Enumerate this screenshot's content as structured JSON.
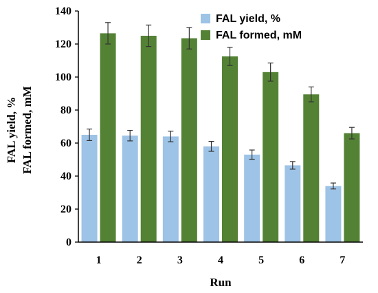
{
  "chart_data": {
    "type": "bar",
    "categories": [
      "1",
      "2",
      "3",
      "4",
      "5",
      "6",
      "7"
    ],
    "series": [
      {
        "name": "FAL yield, %",
        "values": [
          65,
          64.5,
          64,
          58,
          53,
          46.5,
          34
        ],
        "errors": [
          3.5,
          3.2,
          3.2,
          3.0,
          2.8,
          2.3,
          1.8
        ],
        "color": "#9dc3e6"
      },
      {
        "name": "FAL formed, mM",
        "values": [
          126.5,
          125,
          123.5,
          112.5,
          103,
          89.5,
          66
        ],
        "errors": [
          6.5,
          6.5,
          6.5,
          5.5,
          5.5,
          4.5,
          3.5
        ],
        "color": "#548235"
      }
    ],
    "xlabel": "Run",
    "ylabel_line1": "FAL yield, %",
    "ylabel_line2": "FAL formed, mM",
    "ylim": [
      0,
      140
    ],
    "yticks": [
      "0",
      "20",
      "40",
      "60",
      "80",
      "100",
      "120",
      "140"
    ],
    "legend_position": "top-right",
    "grid": false
  }
}
